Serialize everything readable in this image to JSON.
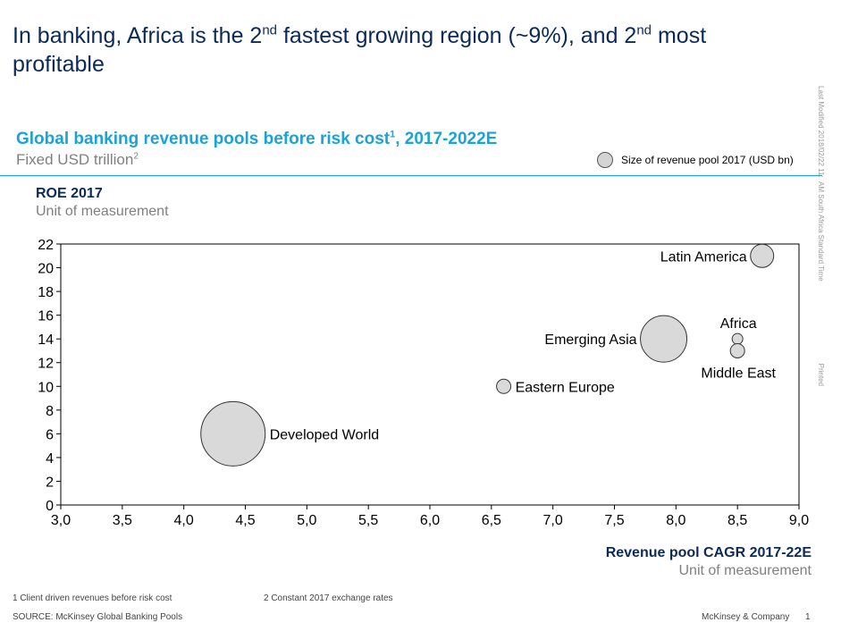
{
  "slide": {
    "title_parts": [
      "In banking, Africa is the 2",
      "nd",
      " fastest growing region (~9%), and 2",
      "nd",
      " most profitable"
    ],
    "side_meta": [
      "Last Modified 2018/02/22 11:",
      "AM South Africa Standard Time",
      "Printed"
    ]
  },
  "chart_header": {
    "title": "Global banking revenue pools before risk cost",
    "title_sup": "1",
    "title_suffix": ", 2017-2022E",
    "subtitle": "Fixed USD trillion",
    "subtitle_sup": "2",
    "legend_label": "Size of revenue  pool 2017 (USD bn)"
  },
  "chart_data": {
    "type": "scatter",
    "variant": "bubble",
    "title": "Global banking revenue pools before risk cost, 2017-2022E",
    "ylabel": "ROE 2017",
    "ylabel_unit": "Unit of measurement",
    "xlabel": "Revenue pool CAGR 2017-22E",
    "xlabel_unit": "Unit of measurement",
    "xlim": [
      3.0,
      9.0
    ],
    "ylim": [
      0,
      22
    ],
    "x_ticks": [
      "3,0",
      "3,5",
      "4,0",
      "4,5",
      "5,0",
      "5,5",
      "6,0",
      "6,5",
      "7,0",
      "7,5",
      "8,0",
      "8,5",
      "9,0"
    ],
    "y_ticks": [
      "0",
      "2",
      "4",
      "6",
      "8",
      "10",
      "12",
      "14",
      "16",
      "18",
      "20",
      "22"
    ],
    "grid": false,
    "points": [
      {
        "name": "Developed World",
        "x": 4.4,
        "y": 6,
        "size": 36,
        "label_side": "right"
      },
      {
        "name": "Eastern Europe",
        "x": 6.6,
        "y": 10,
        "size": 8,
        "label_side": "right"
      },
      {
        "name": "Emerging Asia",
        "x": 7.9,
        "y": 14,
        "size": 26,
        "label_side": "left"
      },
      {
        "name": "Latin America",
        "x": 8.7,
        "y": 21,
        "size": 13,
        "label_side": "left"
      },
      {
        "name": "Africa",
        "x": 8.5,
        "y": 14,
        "size": 6,
        "label_side": "above"
      },
      {
        "name": "Middle East",
        "x": 8.5,
        "y": 13,
        "size": 8,
        "label_side": "below"
      }
    ]
  },
  "footer": {
    "footnote1": "1 Client driven revenues before risk cost",
    "footnote2": "2 Constant 2017 exchange rates",
    "source": "SOURCE:  McKinsey Global Banking Pools",
    "brand": "McKinsey & Company",
    "page": "1"
  }
}
